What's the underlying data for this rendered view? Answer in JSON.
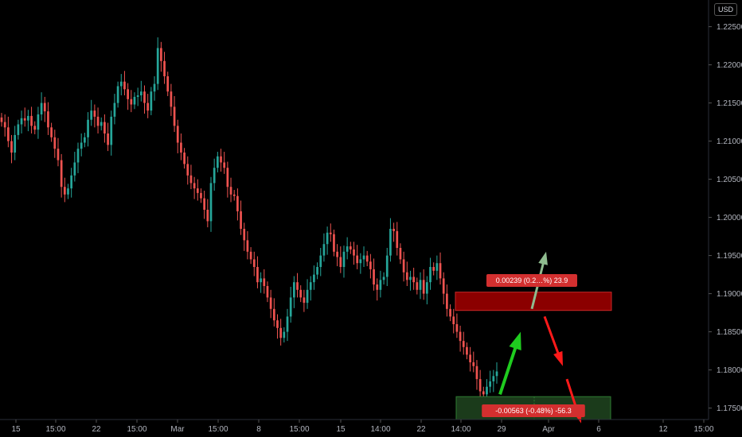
{
  "currency_label": "USD",
  "colors": {
    "background": "#000000",
    "up": "#26a69a",
    "down": "#ef5350",
    "resistance_zone": "#8b0000",
    "support_zone": "#1b3b1b",
    "arrow_up_light": "#8fbc8f",
    "arrow_up": "#1fcc1f",
    "arrow_down": "#ff1a1a",
    "badge_red": "#d32f2f"
  },
  "chart_data": {
    "type": "candlestick",
    "instrument_currency": "USD",
    "y_ticks": [
      "1.22500",
      "1.22000",
      "1.21500",
      "1.21000",
      "1.20500",
      "1.20000",
      "1.19500",
      "1.19000",
      "1.18500",
      "1.18000",
      "1.17500"
    ],
    "ylim": [
      1.1735,
      1.2285
    ],
    "x_ticks": [
      "15",
      "15:00",
      "22",
      "15:00",
      "Mar",
      "15:00",
      "8",
      "15:00",
      "15",
      "14:00",
      "22",
      "14:00",
      "29",
      "Apr",
      "6",
      "12",
      "15:00"
    ],
    "close_series": [
      1.2125,
      1.2118,
      1.21,
      1.2085,
      1.2108,
      1.2122,
      1.213,
      1.2127,
      1.2133,
      1.212,
      1.2115,
      1.2135,
      1.215,
      1.2139,
      1.2118,
      1.2105,
      1.209,
      1.2075,
      1.204,
      1.203,
      1.2038,
      1.2055,
      1.2072,
      1.209,
      1.2098,
      1.2105,
      1.2128,
      1.214,
      1.2132,
      1.212,
      1.2125,
      1.211,
      1.2095,
      1.2132,
      1.215,
      1.2172,
      1.2178,
      1.2168,
      1.2155,
      1.2148,
      1.2158,
      1.216,
      1.2165,
      1.215,
      1.214,
      1.2165,
      1.2175,
      1.2222,
      1.2205,
      1.2185,
      1.2165,
      1.2145,
      1.212,
      1.2098,
      1.2085,
      1.207,
      1.2055,
      1.2045,
      1.2038,
      1.2032,
      1.2025,
      1.201,
      1.1995,
      1.2045,
      1.2065,
      1.208,
      1.2072,
      1.2065,
      1.204,
      1.203,
      1.2028,
      1.2008,
      1.1985,
      1.197,
      1.1955,
      1.1945,
      1.1935,
      1.1915,
      1.192,
      1.191,
      1.1895,
      1.188,
      1.1865,
      1.1855,
      1.1842,
      1.185,
      1.187,
      1.1895,
      1.1915,
      1.1905,
      1.1895,
      1.1888,
      1.1905,
      1.1915,
      1.1925,
      1.1935,
      1.195,
      1.1965,
      1.198,
      1.1978,
      1.1955,
      1.1948,
      1.1935,
      1.1955,
      1.1962,
      1.1958,
      1.195,
      1.194,
      1.1945,
      1.195,
      1.1942,
      1.1932,
      1.1912,
      1.1905,
      1.1918,
      1.1922,
      1.195,
      1.1985,
      1.1982,
      1.196,
      1.1945,
      1.1928,
      1.1918,
      1.1922,
      1.1915,
      1.1905,
      1.1918,
      1.19,
      1.1915,
      1.1935,
      1.193,
      1.194,
      1.192,
      1.19,
      1.188,
      1.187,
      1.186,
      1.185,
      1.1838,
      1.183,
      1.182,
      1.181,
      1.1805,
      1.1788,
      1.1772,
      1.1768,
      1.1778,
      1.1785,
      1.1792,
      1.1798
    ],
    "resistance_zone": {
      "y_from": 1.1878,
      "y_to": 1.1902,
      "label": "0.00239 (0.2…%) 23.9"
    },
    "support_zone": {
      "y_from": 1.1735,
      "y_to": 1.1765,
      "label": "-0.00563 (-0.48%) -56.3"
    },
    "annotations": [
      {
        "type": "arrow",
        "color": "arrow_up_light",
        "from": [
          1.188
        ],
        "to": [
          1.1955
        ]
      },
      {
        "type": "arrow",
        "color": "arrow_up",
        "from": [
          1.1768
        ],
        "to": [
          1.185
        ]
      },
      {
        "type": "arrow",
        "color": "arrow_down",
        "from": [
          1.187
        ],
        "to": [
          1.1805
        ]
      },
      {
        "type": "arrow",
        "color": "arrow_down",
        "from": [
          1.1788
        ],
        "to": [
          1.173
        ]
      }
    ]
  }
}
